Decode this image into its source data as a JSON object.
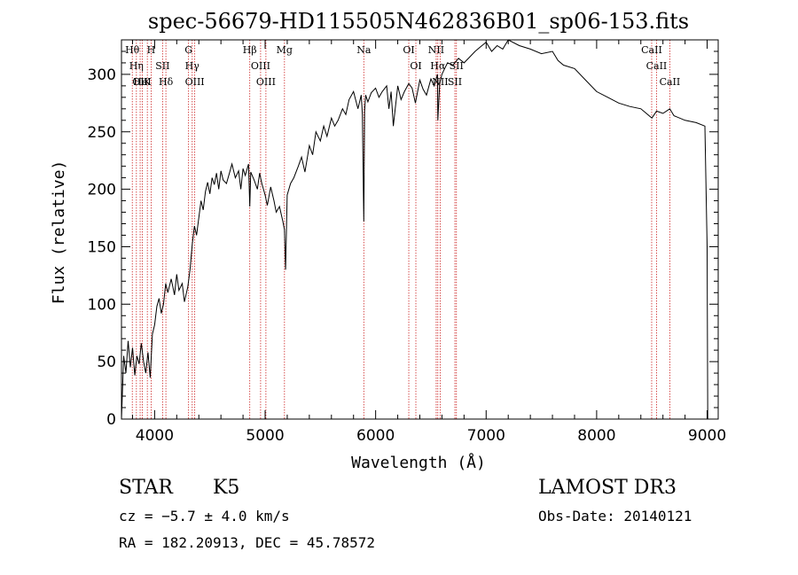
{
  "chart_data": {
    "type": "line",
    "title": "spec-56679-HD115505N462836B01_sp06-153.fits",
    "xlabel": "Wavelength (Å)",
    "ylabel": "Flux (relative)",
    "xlim": [
      3700,
      9100
    ],
    "ylim": [
      0,
      330
    ],
    "x_ticks": [
      4000,
      5000,
      6000,
      7000,
      8000,
      9000
    ],
    "y_ticks": [
      0,
      50,
      100,
      150,
      200,
      250,
      300
    ],
    "series": [
      {
        "name": "spectrum",
        "color": "#000000",
        "x": [
          3700,
          3720,
          3740,
          3760,
          3780,
          3800,
          3820,
          3840,
          3860,
          3880,
          3900,
          3920,
          3940,
          3960,
          3980,
          4000,
          4020,
          4040,
          4060,
          4080,
          4100,
          4120,
          4150,
          4180,
          4200,
          4220,
          4250,
          4270,
          4300,
          4320,
          4340,
          4360,
          4380,
          4400,
          4420,
          4440,
          4460,
          4480,
          4500,
          4520,
          4540,
          4560,
          4580,
          4600,
          4620,
          4650,
          4680,
          4700,
          4730,
          4760,
          4780,
          4800,
          4820,
          4850,
          4861,
          4870,
          4900,
          4930,
          4950,
          4970,
          5000,
          5020,
          5050,
          5080,
          5100,
          5130,
          5160,
          5175,
          5185,
          5200,
          5230,
          5260,
          5300,
          5330,
          5360,
          5400,
          5430,
          5460,
          5500,
          5530,
          5560,
          5600,
          5630,
          5660,
          5700,
          5730,
          5760,
          5800,
          5840,
          5870,
          5880,
          5893,
          5900,
          5910,
          5930,
          5960,
          6000,
          6030,
          6060,
          6100,
          6120,
          6140,
          6160,
          6200,
          6230,
          6260,
          6300,
          6330,
          6360,
          6400,
          6430,
          6460,
          6500,
          6530,
          6560,
          6563,
          6580,
          6600,
          6620,
          6650,
          6700,
          6750,
          6800,
          6850,
          6900,
          6950,
          7000,
          7050,
          7100,
          7150,
          7200,
          7300,
          7400,
          7500,
          7600,
          7650,
          7700,
          7800,
          7900,
          8000,
          8100,
          8200,
          8300,
          8400,
          8500,
          8542,
          8600,
          8662,
          8700,
          8800,
          8900,
          8980,
          9000,
          9005
        ],
        "values": [
          0,
          55,
          40,
          68,
          45,
          62,
          38,
          55,
          48,
          66,
          50,
          40,
          58,
          36,
          74,
          82,
          98,
          105,
          92,
          100,
          118,
          110,
          122,
          108,
          126,
          112,
          118,
          102,
          115,
          130,
          152,
          168,
          160,
          175,
          190,
          182,
          198,
          206,
          196,
          210,
          204,
          214,
          200,
          216,
          208,
          205,
          215,
          222,
          210,
          216,
          200,
          218,
          212,
          222,
          185,
          215,
          208,
          200,
          214,
          205,
          195,
          186,
          202,
          190,
          180,
          185,
          172,
          165,
          130,
          195,
          205,
          210,
          220,
          228,
          215,
          238,
          230,
          250,
          242,
          255,
          246,
          262,
          255,
          260,
          270,
          265,
          278,
          285,
          270,
          282,
          265,
          172,
          268,
          282,
          276,
          284,
          288,
          280,
          285,
          290,
          270,
          285,
          255,
          290,
          278,
          285,
          292,
          288,
          275,
          295,
          287,
          282,
          296,
          290,
          300,
          260,
          292,
          300,
          304,
          310,
          308,
          314,
          310,
          315,
          320,
          324,
          328,
          320,
          325,
          322,
          330,
          325,
          322,
          318,
          320,
          312,
          308,
          305,
          295,
          285,
          280,
          275,
          272,
          270,
          262,
          268,
          266,
          270,
          264,
          260,
          258,
          255,
          150,
          0
        ]
      }
    ],
    "line_marks": [
      {
        "x": 3798,
        "label": "Hθ"
      },
      {
        "x": 3835,
        "label": "Hη"
      },
      {
        "x": 3869,
        "label": "OII"
      },
      {
        "x": 3889,
        "label": "HeI"
      },
      {
        "x": 3934,
        "label": "K"
      },
      {
        "x": 3968,
        "label": "H"
      },
      {
        "x": 4072,
        "label": "SII"
      },
      {
        "x": 4102,
        "label": "Hδ"
      },
      {
        "x": 4307,
        "label": "G"
      },
      {
        "x": 4340,
        "label": "Hγ"
      },
      {
        "x": 4363,
        "label": "OIII"
      },
      {
        "x": 4861,
        "label": "Hβ"
      },
      {
        "x": 4959,
        "label": "OIII"
      },
      {
        "x": 5007,
        "label": "OIII"
      },
      {
        "x": 5175,
        "label": "Mg"
      },
      {
        "x": 5893,
        "label": "Na"
      },
      {
        "x": 6300,
        "label": "OI"
      },
      {
        "x": 6364,
        "label": "OI"
      },
      {
        "x": 6548,
        "label": "NII"
      },
      {
        "x": 6563,
        "label": "Hα"
      },
      {
        "x": 6584,
        "label": "NII"
      },
      {
        "x": 6717,
        "label": "SII"
      },
      {
        "x": 6731,
        "label": "SII"
      },
      {
        "x": 8498,
        "label": "CaII"
      },
      {
        "x": 8542,
        "label": "CaII"
      },
      {
        "x": 8662,
        "label": "CaII"
      }
    ],
    "mark_color": "#cc2222"
  },
  "info": {
    "object_class": "STAR",
    "subclass": "K5",
    "survey": "LAMOST DR3",
    "redshift": "cz = −5.7 ± 4.0 km/s",
    "obs_date": "Obs-Date: 20140121",
    "coords": "RA = 182.20913, DEC =  45.78572"
  }
}
